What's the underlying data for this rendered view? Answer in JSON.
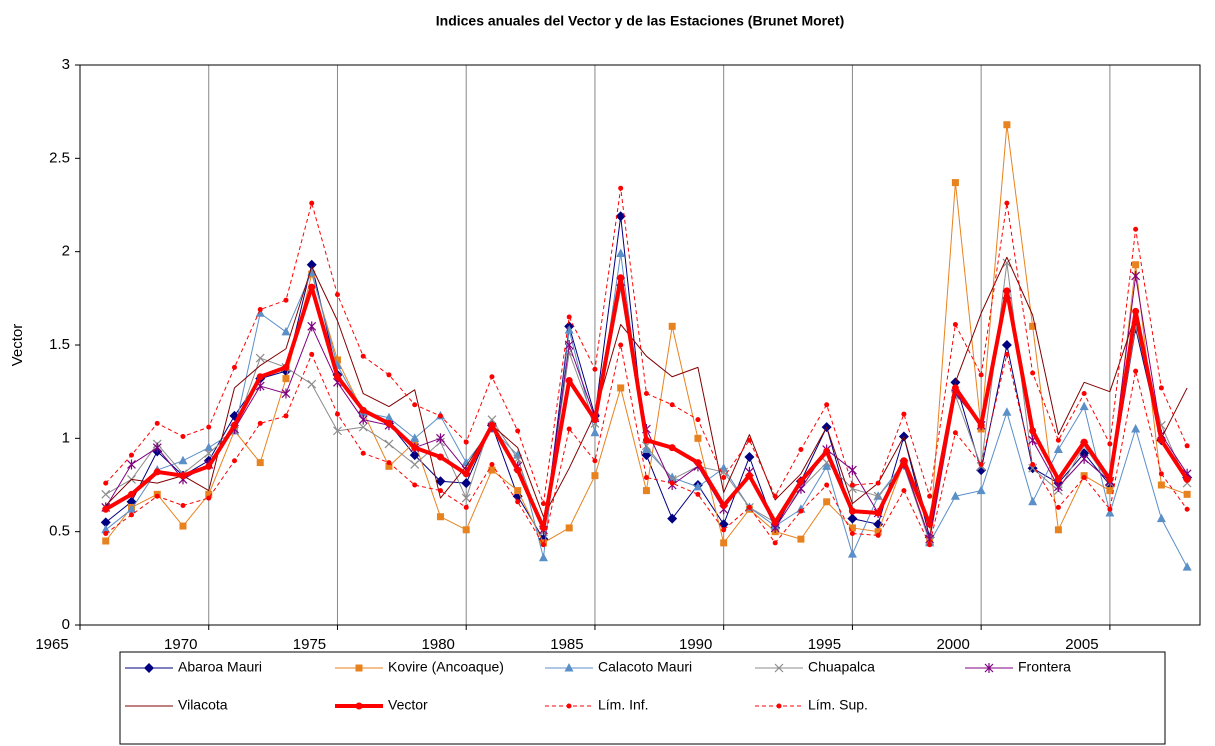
{
  "chart_data": {
    "type": "line",
    "title": "Indices anuales del Vector y de las Estaciones (Brunet Moret)",
    "y_label": "Vector",
    "x": [
      1966,
      1967,
      1968,
      1969,
      1970,
      1971,
      1972,
      1973,
      1974,
      1975,
      1976,
      1977,
      1978,
      1979,
      1980,
      1981,
      1982,
      1983,
      1984,
      1985,
      1986,
      1987,
      1988,
      1989,
      1990,
      1991,
      1992,
      1993,
      1994,
      1995,
      1996,
      1997,
      1998,
      1999,
      2000,
      2001,
      2002,
      2003,
      2004,
      2005,
      2006,
      2007,
      2008
    ],
    "xlim": [
      1965,
      2008.5
    ],
    "xticks": [
      1965,
      1970,
      1975,
      1980,
      1985,
      1990,
      1995,
      2000,
      2005
    ],
    "ylim": [
      0,
      3
    ],
    "yticks": [
      0,
      0.5,
      1,
      1.5,
      2,
      2.5,
      3
    ],
    "grid": "x",
    "legend": "bottom",
    "series": [
      {
        "name": "Abaroa Mauri",
        "color": "#000080",
        "marker": "diamond",
        "values": [
          0.55,
          0.66,
          0.93,
          0.8,
          0.88,
          1.12,
          1.32,
          1.36,
          1.93,
          1.34,
          1.14,
          1.08,
          0.91,
          0.77,
          0.76,
          1.07,
          0.69,
          0.46,
          1.6,
          1.12,
          2.19,
          0.91,
          0.57,
          0.75,
          0.54,
          0.9,
          0.52,
          0.77,
          1.06,
          0.57,
          0.54,
          1.01,
          0.47,
          1.3,
          0.83,
          1.5,
          0.84,
          0.76,
          0.92,
          0.75,
          1.59,
          0.99,
          0.79
        ]
      },
      {
        "name": "Kovire (Ancoaque)",
        "color": "#e8821e",
        "marker": "square",
        "values": [
          0.45,
          0.63,
          0.7,
          0.53,
          0.7,
          1.04,
          0.87,
          1.32,
          1.88,
          1.42,
          1.14,
          0.85,
          0.98,
          0.58,
          0.51,
          0.83,
          0.72,
          0.44,
          0.52,
          0.8,
          1.27,
          0.72,
          1.6,
          1.0,
          0.44,
          0.62,
          0.5,
          0.46,
          0.66,
          0.52,
          0.5,
          0.87,
          0.46,
          2.37,
          1.05,
          2.68,
          1.6,
          0.51,
          0.8,
          0.72,
          1.93,
          0.75,
          0.7
        ]
      },
      {
        "name": "Calacoto Mauri",
        "color": "#5b8fc8",
        "marker": "triangle",
        "values": [
          0.51,
          0.62,
          0.83,
          0.88,
          0.95,
          1.04,
          1.67,
          1.57,
          1.89,
          1.39,
          1.14,
          1.11,
          1.0,
          1.12,
          0.87,
          1.05,
          0.91,
          0.36,
          1.58,
          1.03,
          1.99,
          0.94,
          0.79,
          0.74,
          0.84,
          0.63,
          0.53,
          0.62,
          0.85,
          0.38,
          0.69,
          0.87,
          0.44,
          0.69,
          0.72,
          1.14,
          0.66,
          0.94,
          1.17,
          0.6,
          1.05,
          0.57,
          0.31
        ]
      },
      {
        "name": "Chuapalca",
        "color": "#8c8c8c",
        "marker": "x",
        "values": [
          0.7,
          0.78,
          0.97,
          0.81,
          0.92,
          1.04,
          1.43,
          1.38,
          1.29,
          1.04,
          1.06,
          0.97,
          0.86,
          0.98,
          0.68,
          1.1,
          0.89,
          0.5,
          1.46,
          1.08,
          1.8,
          0.96,
          0.78,
          0.85,
          0.82,
          0.63,
          0.55,
          0.73,
          0.87,
          0.73,
          0.69,
          0.85,
          0.45,
          1.23,
          0.85,
          1.94,
          0.84,
          0.72,
          0.96,
          0.76,
          1.6,
          1.07,
          0.76
        ]
      },
      {
        "name": "Frontera",
        "color": "#800080",
        "marker": "star",
        "values": [
          0.63,
          0.86,
          0.95,
          0.78,
          0.86,
          1.05,
          1.28,
          1.24,
          1.6,
          1.3,
          1.1,
          1.07,
          0.95,
          1.0,
          0.83,
          1.06,
          0.85,
          0.51,
          1.5,
          1.11,
          1.84,
          1.05,
          0.75,
          0.85,
          0.62,
          0.82,
          0.52,
          0.73,
          0.94,
          0.83,
          0.6,
          0.86,
          0.46,
          1.24,
          1.07,
          1.77,
          0.99,
          0.74,
          0.89,
          0.77,
          1.87,
          1.02,
          0.81
        ]
      },
      {
        "name": "Vilacota",
        "color": "#800000",
        "marker": "none",
        "values": [
          0.64,
          0.78,
          0.76,
          0.8,
          0.72,
          1.27,
          1.39,
          1.48,
          1.92,
          1.63,
          1.24,
          1.17,
          1.26,
          0.68,
          0.85,
          1.07,
          0.95,
          0.58,
          0.84,
          1.13,
          1.61,
          1.44,
          1.33,
          1.38,
          0.71,
          1.02,
          0.67,
          0.81,
          1.06,
          0.65,
          0.76,
          1.01,
          0.52,
          1.3,
          1.67,
          1.97,
          1.66,
          1.02,
          1.3,
          1.25,
          1.66,
          1.0,
          1.27
        ]
      },
      {
        "name": "Vector",
        "color": "#ff0000",
        "marker": "circle",
        "width": 4,
        "values": [
          0.62,
          0.7,
          0.82,
          0.8,
          0.85,
          1.07,
          1.33,
          1.38,
          1.81,
          1.33,
          1.15,
          1.08,
          0.95,
          0.9,
          0.81,
          1.07,
          0.83,
          0.52,
          1.31,
          1.1,
          1.86,
          0.99,
          0.95,
          0.87,
          0.64,
          0.8,
          0.55,
          0.77,
          0.93,
          0.61,
          0.6,
          0.88,
          0.54,
          1.27,
          1.07,
          1.79,
          1.04,
          0.78,
          0.98,
          0.78,
          1.68,
          0.99,
          0.78
        ]
      },
      {
        "name": "Lím. Inf.",
        "color": "#ff0000",
        "marker": "dot",
        "dash": true,
        "values": [
          0.49,
          0.59,
          0.69,
          0.64,
          0.68,
          0.88,
          1.08,
          1.12,
          1.45,
          1.13,
          0.92,
          0.87,
          0.75,
          0.72,
          0.63,
          0.86,
          0.66,
          0.43,
          1.05,
          0.88,
          1.5,
          0.79,
          0.76,
          0.7,
          0.51,
          0.63,
          0.44,
          0.61,
          0.75,
          0.49,
          0.48,
          0.72,
          0.43,
          1.03,
          0.86,
          1.45,
          0.86,
          0.63,
          0.79,
          0.62,
          1.36,
          0.81,
          0.62
        ]
      },
      {
        "name": "Lím. Sup.",
        "color": "#ff0000",
        "marker": "dot",
        "dash": true,
        "values": [
          0.76,
          0.91,
          1.08,
          1.01,
          1.06,
          1.38,
          1.69,
          1.74,
          2.26,
          1.77,
          1.44,
          1.34,
          1.18,
          1.12,
          0.98,
          1.33,
          1.04,
          0.65,
          1.65,
          1.37,
          2.34,
          1.24,
          1.18,
          1.1,
          0.79,
          0.99,
          0.69,
          0.94,
          1.18,
          0.75,
          0.76,
          1.13,
          0.69,
          1.61,
          1.34,
          2.26,
          1.35,
          0.99,
          1.24,
          0.97,
          2.12,
          1.27,
          0.96
        ]
      }
    ]
  }
}
